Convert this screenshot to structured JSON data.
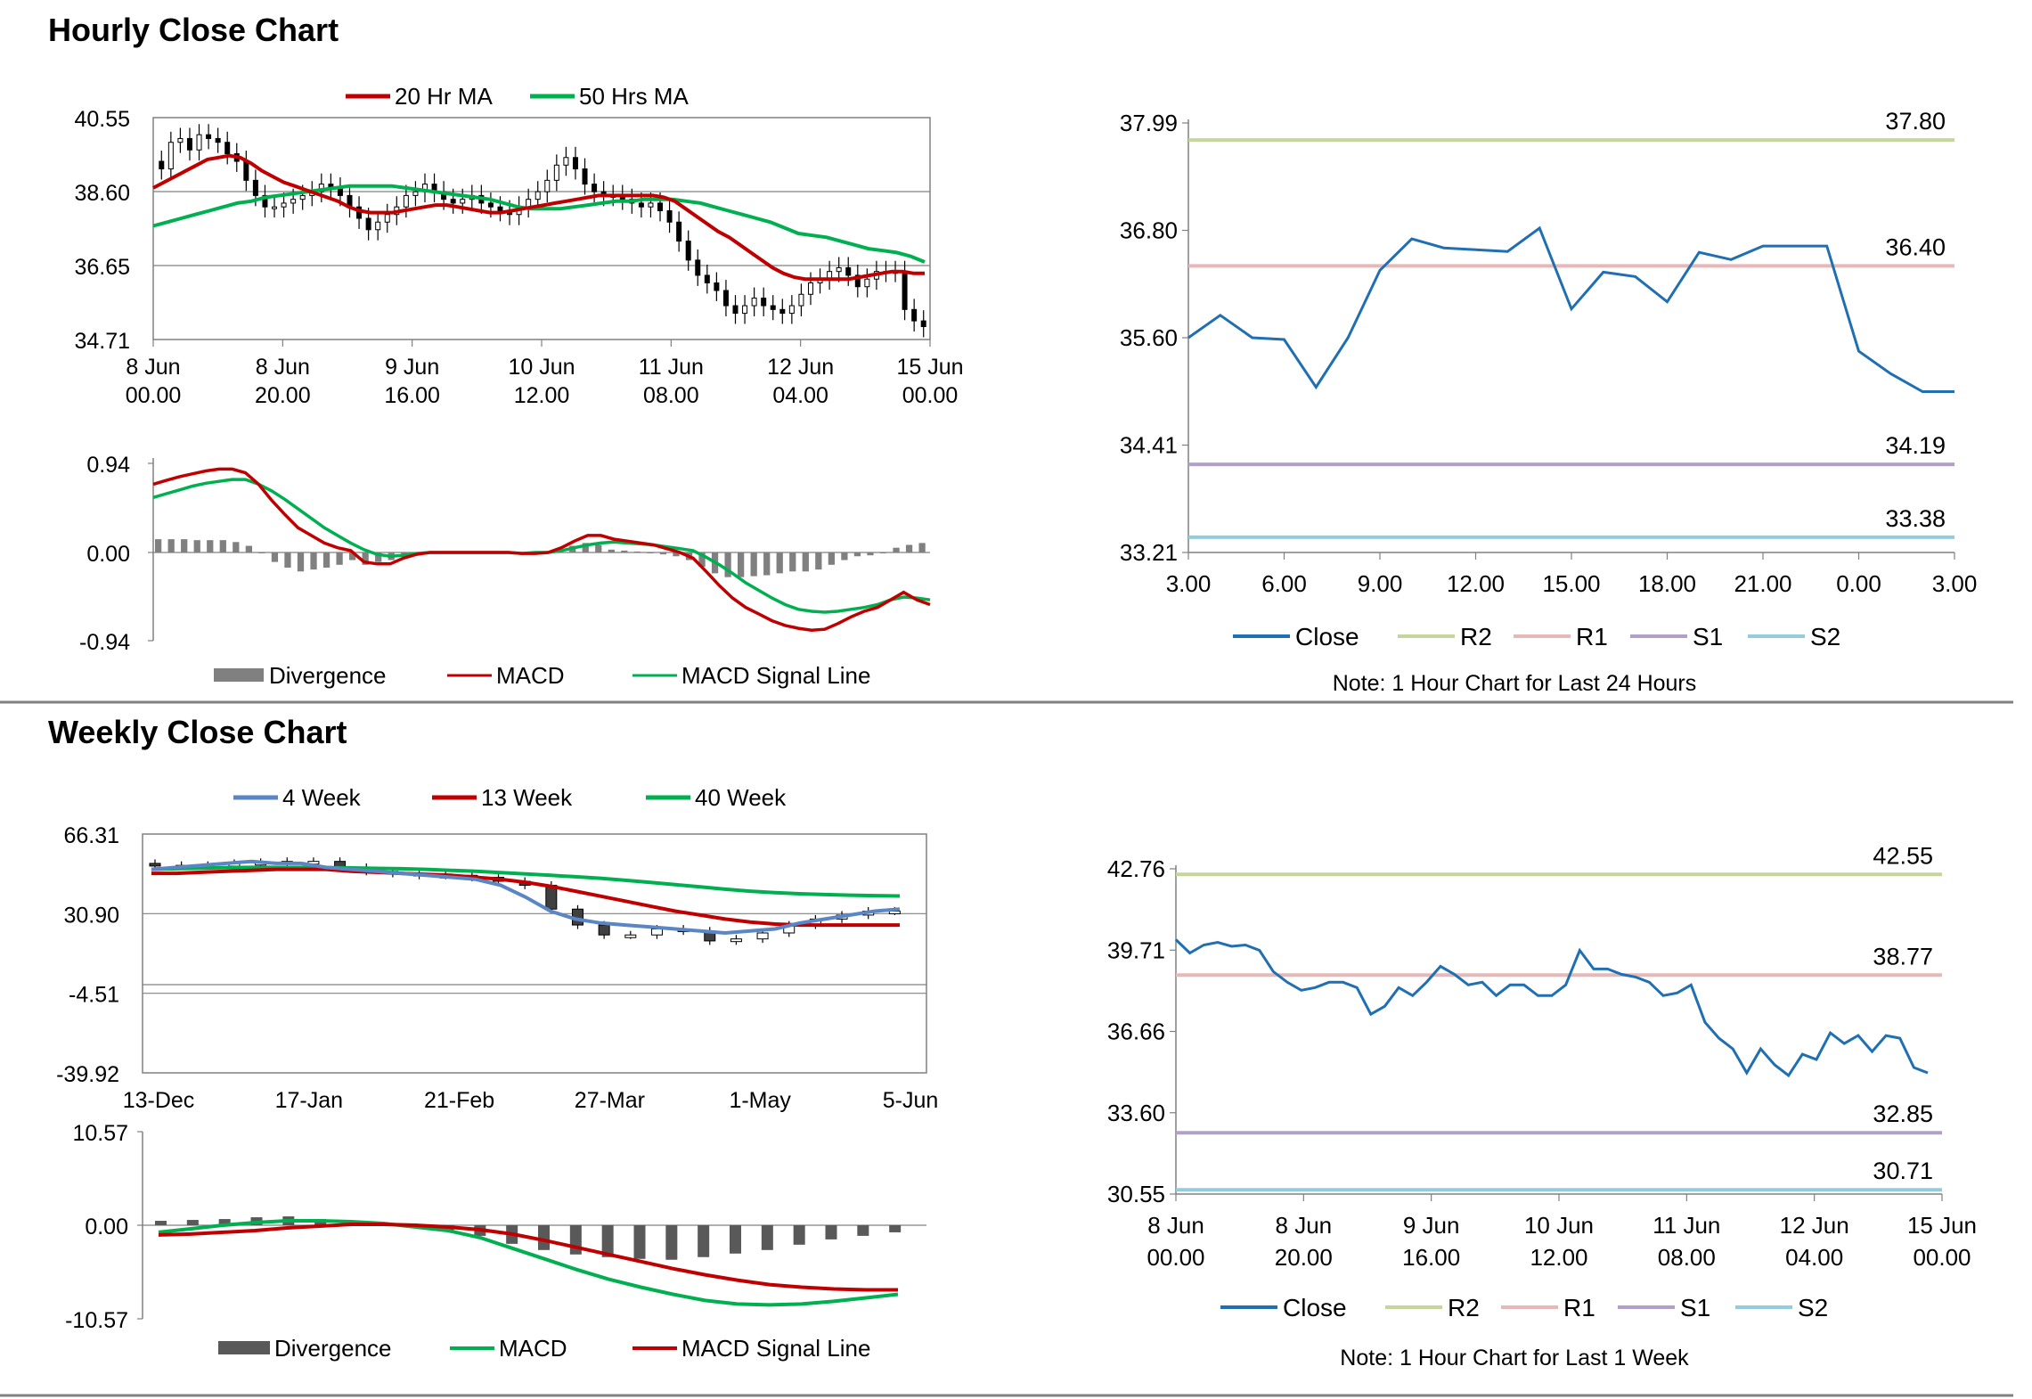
{
  "sections": {
    "hourly_title": "Hourly Close Chart",
    "weekly_title": "Weekly Close Chart"
  },
  "colors": {
    "red": "#c00000",
    "green": "#00b050",
    "blue": "#1f6fb2",
    "steel": "#5b86c5",
    "r2": "#c4d79b",
    "r1": "#e6b9b8",
    "s1": "#b1a0c7",
    "s2": "#93cddd",
    "grey_bar": "#808080",
    "dark_bar": "#595959",
    "divider": "#808080"
  },
  "chart_data": [
    {
      "id": "hourly_price",
      "type": "candlestick",
      "legend": [
        "20 Hr MA",
        "50 Hrs MA"
      ],
      "y_ticks": [
        "40.55",
        "38.60",
        "36.65",
        "34.71"
      ],
      "ylim": [
        34.71,
        40.55
      ],
      "x_ticks": [
        [
          "8 Jun",
          "00.00"
        ],
        [
          "8 Jun",
          "20.00"
        ],
        [
          "9 Jun",
          "16.00"
        ],
        [
          "10 Jun",
          "12.00"
        ],
        [
          "11 Jun",
          "08.00"
        ],
        [
          "12 Jun",
          "04.00"
        ],
        [
          "15 Jun",
          "00.00"
        ]
      ],
      "close": [
        39.2,
        39.9,
        40.0,
        39.7,
        40.1,
        40.0,
        39.9,
        39.6,
        39.4,
        38.9,
        38.5,
        38.2,
        38.2,
        38.3,
        38.4,
        38.5,
        38.6,
        38.8,
        38.7,
        38.5,
        38.2,
        37.9,
        37.6,
        37.8,
        38.0,
        38.2,
        38.5,
        38.6,
        38.8,
        38.6,
        38.4,
        38.3,
        38.4,
        38.5,
        38.3,
        38.2,
        38.1,
        38.0,
        38.2,
        38.4,
        38.6,
        38.9,
        39.3,
        39.5,
        39.2,
        38.8,
        38.6,
        38.5,
        38.5,
        38.4,
        38.3,
        38.2,
        38.3,
        38.1,
        37.8,
        37.3,
        36.8,
        36.4,
        36.2,
        36.0,
        35.6,
        35.4,
        35.6,
        35.8,
        35.6,
        35.5,
        35.4,
        35.6,
        35.9,
        36.2,
        36.3,
        36.5,
        36.6,
        36.4,
        36.1,
        36.3,
        36.5,
        36.5,
        36.5,
        35.5,
        35.2,
        35.05
      ],
      "ma20": [
        38.7,
        38.85,
        39.0,
        39.15,
        39.3,
        39.45,
        39.5,
        39.55,
        39.5,
        39.35,
        39.15,
        39.0,
        38.85,
        38.75,
        38.65,
        38.55,
        38.45,
        38.35,
        38.2,
        38.1,
        38.05,
        38.05,
        38.05,
        38.1,
        38.15,
        38.2,
        38.25,
        38.25,
        38.2,
        38.15,
        38.1,
        38.05,
        38.05,
        38.1,
        38.15,
        38.2,
        38.25,
        38.3,
        38.35,
        38.4,
        38.45,
        38.5,
        38.5,
        38.5,
        38.5,
        38.5,
        38.5,
        38.45,
        38.35,
        38.15,
        37.95,
        37.75,
        37.55,
        37.4,
        37.2,
        37.0,
        36.8,
        36.6,
        36.45,
        36.35,
        36.3,
        36.3,
        36.3,
        36.3,
        36.3,
        36.35,
        36.4,
        36.45,
        36.5,
        36.5,
        36.45,
        36.45
      ],
      "ma50": [
        37.7,
        37.8,
        37.9,
        38.0,
        38.1,
        38.2,
        38.3,
        38.35,
        38.45,
        38.5,
        38.55,
        38.6,
        38.65,
        38.7,
        38.75,
        38.75,
        38.75,
        38.75,
        38.7,
        38.65,
        38.6,
        38.55,
        38.5,
        38.45,
        38.4,
        38.3,
        38.2,
        38.15,
        38.15,
        38.15,
        38.2,
        38.25,
        38.3,
        38.35,
        38.35,
        38.4,
        38.4,
        38.4,
        38.35,
        38.3,
        38.2,
        38.1,
        38.0,
        37.9,
        37.8,
        37.65,
        37.5,
        37.45,
        37.4,
        37.3,
        37.2,
        37.1,
        37.05,
        37.0,
        36.9,
        36.75
      ]
    },
    {
      "id": "hourly_macd",
      "type": "bar+line",
      "y_ticks": [
        "0.94",
        "0.00",
        "-0.94"
      ],
      "ylim": [
        -0.94,
        0.94
      ],
      "legend": [
        "Divergence",
        "MACD",
        "MACD Signal Line"
      ],
      "macd": [
        0.72,
        0.76,
        0.8,
        0.83,
        0.86,
        0.88,
        0.88,
        0.84,
        0.72,
        0.55,
        0.4,
        0.26,
        0.18,
        0.1,
        0.05,
        0.02,
        -0.1,
        -0.12,
        -0.12,
        -0.06,
        -0.02,
        0.0,
        0.0,
        0.0,
        0.0,
        0.0,
        0.0,
        0.0,
        -0.01,
        -0.01,
        0.0,
        0.05,
        0.12,
        0.18,
        0.18,
        0.14,
        0.12,
        0.1,
        0.08,
        0.04,
        0.0,
        -0.06,
        -0.2,
        -0.35,
        -0.48,
        -0.58,
        -0.65,
        -0.72,
        -0.77,
        -0.8,
        -0.82,
        -0.81,
        -0.75,
        -0.68,
        -0.62,
        -0.58,
        -0.5,
        -0.42,
        -0.5,
        -0.55
      ],
      "signal": [
        0.58,
        0.62,
        0.66,
        0.7,
        0.73,
        0.75,
        0.77,
        0.77,
        0.72,
        0.65,
        0.56,
        0.46,
        0.36,
        0.26,
        0.18,
        0.1,
        0.03,
        -0.02,
        -0.04,
        -0.03,
        -0.01,
        0.0,
        0.0,
        0.0,
        0.0,
        0.0,
        0.0,
        0.0,
        -0.01,
        0.0,
        0.0,
        0.02,
        0.05,
        0.08,
        0.1,
        0.11,
        0.1,
        0.09,
        0.08,
        0.06,
        0.04,
        0.02,
        -0.05,
        -0.13,
        -0.22,
        -0.32,
        -0.4,
        -0.48,
        -0.55,
        -0.6,
        -0.62,
        -0.63,
        -0.62,
        -0.6,
        -0.58,
        -0.55,
        -0.5,
        -0.47,
        -0.48,
        -0.5
      ],
      "divergence": [
        0.14,
        0.14,
        0.14,
        0.13,
        0.13,
        0.13,
        0.11,
        0.07,
        0.0,
        -0.1,
        -0.16,
        -0.2,
        -0.18,
        -0.16,
        -0.13,
        -0.08,
        -0.13,
        -0.1,
        -0.08,
        -0.03,
        -0.01,
        0.0,
        0.0,
        0.0,
        0.0,
        0.0,
        0.0,
        0.0,
        0.0,
        -0.01,
        0.0,
        0.03,
        0.07,
        0.1,
        0.08,
        0.03,
        0.02,
        0.01,
        0.0,
        -0.02,
        -0.04,
        -0.08,
        -0.15,
        -0.22,
        -0.26,
        -0.26,
        -0.25,
        -0.24,
        -0.22,
        -0.2,
        -0.2,
        -0.18,
        -0.13,
        -0.08,
        -0.04,
        -0.03,
        0.0,
        0.05,
        0.08,
        0.1
      ]
    },
    {
      "id": "hourly_24h",
      "type": "line",
      "y_ticks": [
        "37.99",
        "36.80",
        "35.60",
        "34.41",
        "33.21"
      ],
      "ylim": [
        33.21,
        37.99
      ],
      "x_ticks": [
        "3.00",
        "6.00",
        "9.00",
        "12.00",
        "15.00",
        "18.00",
        "21.00",
        "0.00",
        "3.00"
      ],
      "x": [
        3,
        4,
        5,
        6,
        7,
        8,
        9,
        10,
        11,
        12,
        13,
        14,
        15,
        16,
        17,
        18,
        19,
        20,
        21,
        22,
        23,
        24,
        25,
        26,
        27
      ],
      "close": [
        35.6,
        35.85,
        35.6,
        35.58,
        35.05,
        35.6,
        36.35,
        36.7,
        36.6,
        36.58,
        36.56,
        36.82,
        35.92,
        36.33,
        36.28,
        36.0,
        36.55,
        36.47,
        36.62,
        36.62,
        36.62,
        35.45,
        35.2,
        35.0,
        35.0
      ],
      "levels": [
        {
          "name": "R2",
          "value": 37.8,
          "label": "37.80"
        },
        {
          "name": "R1",
          "value": 36.4,
          "label": "36.40"
        },
        {
          "name": "S1",
          "value": 34.19,
          "label": "34.19"
        },
        {
          "name": "S2",
          "value": 33.38,
          "label": "33.38"
        }
      ],
      "legend": [
        "Close",
        "R2",
        "R1",
        "S1",
        "S2"
      ],
      "note": "Note: 1 Hour Chart for Last 24 Hours"
    },
    {
      "id": "weekly_price",
      "type": "candlestick",
      "legend": [
        "4 Week",
        "13 Week",
        "40 Week"
      ],
      "y_ticks": [
        "66.31",
        "30.90",
        "-4.51",
        "-39.92"
      ],
      "ylim": [
        -39.92,
        66.31
      ],
      "x_ticks": [
        "13-Dec",
        "17-Jan",
        "21-Feb",
        "27-Mar",
        "1-May",
        "5-Jun"
      ],
      "close": [
        60,
        60,
        60,
        61,
        61.5,
        62,
        62,
        59,
        57,
        56,
        55,
        55,
        54,
        52,
        50,
        38,
        30,
        25,
        25,
        28,
        27,
        22,
        23,
        26,
        30,
        33,
        35,
        37,
        37
      ],
      "wk4": [
        58,
        59,
        60,
        61,
        62,
        61,
        61,
        59,
        58,
        57,
        56,
        55,
        54,
        53,
        50,
        44,
        37,
        33,
        31,
        30,
        29,
        28,
        27,
        26,
        27,
        28,
        31,
        33,
        35,
        37,
        38
      ],
      "wk13": [
        56,
        56,
        56.5,
        57,
        57.5,
        58,
        58,
        58,
        57,
        56.5,
        56,
        55.5,
        55,
        54,
        53,
        51.5,
        49.5,
        47,
        44.5,
        42,
        39.5,
        37,
        35,
        33,
        31.5,
        30.5,
        30,
        30,
        30,
        30,
        30
      ],
      "wk40": [
        58,
        58.3,
        58.6,
        58.9,
        59,
        59,
        59,
        58.9,
        58.7,
        58.5,
        58.3,
        58,
        57.5,
        57,
        56.4,
        55.7,
        55,
        54.3,
        53.5,
        52.5,
        51.4,
        50.3,
        49.2,
        48,
        47,
        46.3,
        45.7,
        45.3,
        45,
        44.8,
        44.6
      ]
    },
    {
      "id": "weekly_macd",
      "type": "bar+line",
      "y_ticks": [
        "10.57",
        "0.00",
        "-10.57"
      ],
      "ylim": [
        -10.57,
        10.57
      ],
      "legend": [
        "Divergence",
        "MACD",
        "MACD Signal Line"
      ],
      "macd": [
        -0.8,
        -0.4,
        0.0,
        0.3,
        0.5,
        0.5,
        0.4,
        0.2,
        -0.2,
        -0.6,
        -1.4,
        -2.6,
        -3.8,
        -5.0,
        -6.1,
        -7.0,
        -7.8,
        -8.5,
        -8.9,
        -9.0,
        -8.9,
        -8.6,
        -8.2,
        -7.8
      ],
      "signal": [
        -1.1,
        -1.0,
        -0.8,
        -0.6,
        -0.3,
        -0.1,
        0.1,
        0.1,
        0.0,
        -0.2,
        -0.5,
        -1.0,
        -1.7,
        -2.5,
        -3.3,
        -4.1,
        -4.9,
        -5.6,
        -6.2,
        -6.7,
        -7.0,
        -7.2,
        -7.3,
        -7.3
      ],
      "divergence": [
        0.5,
        0.6,
        0.7,
        0.9,
        1.0,
        0.7,
        0.4,
        0.2,
        -0.3,
        -0.6,
        -1.2,
        -2.1,
        -2.8,
        -3.3,
        -3.6,
        -3.8,
        -3.9,
        -3.6,
        -3.2,
        -2.8,
        -2.2,
        -1.6,
        -1.2,
        -0.8
      ]
    },
    {
      "id": "weekly_1w",
      "type": "line",
      "y_ticks": [
        "42.76",
        "39.71",
        "36.66",
        "33.60",
        "30.55"
      ],
      "ylim": [
        30.55,
        42.76
      ],
      "x_ticks": [
        [
          "8 Jun",
          "00.00"
        ],
        [
          "8 Jun",
          "20.00"
        ],
        [
          "9 Jun",
          "16.00"
        ],
        [
          "10 Jun",
          "12.00"
        ],
        [
          "11 Jun",
          "08.00"
        ],
        [
          "12 Jun",
          "04.00"
        ],
        [
          "15 Jun",
          "00.00"
        ]
      ],
      "close": [
        40.1,
        39.6,
        39.9,
        40.0,
        39.85,
        39.9,
        39.7,
        38.9,
        38.5,
        38.2,
        38.3,
        38.5,
        38.5,
        38.3,
        37.3,
        37.6,
        38.3,
        38.0,
        38.5,
        39.1,
        38.8,
        38.4,
        38.5,
        38.0,
        38.4,
        38.4,
        38.0,
        38.0,
        38.4,
        39.7,
        39.0,
        39.0,
        38.8,
        38.7,
        38.5,
        38.0,
        38.1,
        38.4,
        37.0,
        36.4,
        36.0,
        35.1,
        36.0,
        35.4,
        35.0,
        35.8,
        35.6,
        36.6,
        36.2,
        36.5,
        35.9,
        36.5,
        36.4,
        35.3,
        35.1
      ],
      "levels": [
        {
          "name": "R2",
          "value": 42.55,
          "label": "42.55"
        },
        {
          "name": "R1",
          "value": 38.77,
          "label": "38.77"
        },
        {
          "name": "S1",
          "value": 32.85,
          "label": "32.85"
        },
        {
          "name": "S2",
          "value": 30.71,
          "label": "30.71"
        }
      ],
      "legend": [
        "Close",
        "R2",
        "R1",
        "S1",
        "S2"
      ],
      "note": "Note: 1 Hour Chart for Last 1 Week"
    }
  ]
}
